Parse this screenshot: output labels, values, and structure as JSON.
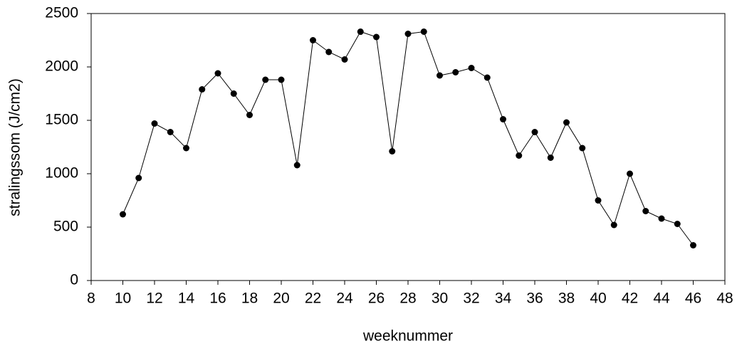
{
  "chart_data": {
    "type": "line",
    "x_label": "weeknummer",
    "y_label": "stralingssom (J/cm2)",
    "x": [
      10,
      11,
      12,
      13,
      14,
      15,
      16,
      17,
      18,
      19,
      20,
      21,
      22,
      23,
      24,
      25,
      26,
      27,
      28,
      29,
      30,
      31,
      32,
      33,
      34,
      35,
      36,
      37,
      38,
      39,
      40,
      41,
      42,
      43,
      44,
      45,
      46
    ],
    "series": [
      {
        "color": "#000000",
        "values": [
          620,
          960,
          1470,
          1390,
          1240,
          1790,
          1940,
          1750,
          1550,
          1880,
          1880,
          1080,
          2250,
          2140,
          2070,
          2330,
          2280,
          1210,
          2310,
          2330,
          1920,
          1950,
          1990,
          1900,
          1510,
          1170,
          1390,
          1150,
          1480,
          1240,
          750,
          520,
          1000,
          650,
          580,
          530,
          330
        ]
      }
    ],
    "xlim": [
      8,
      48
    ],
    "xticks": [
      8,
      10,
      12,
      14,
      16,
      18,
      20,
      22,
      24,
      26,
      28,
      30,
      32,
      34,
      36,
      38,
      40,
      42,
      44,
      46,
      48
    ],
    "ylim": [
      0,
      2500
    ],
    "yticks": [
      0,
      500,
      1000,
      1500,
      2000,
      2500
    ],
    "grid": false
  }
}
